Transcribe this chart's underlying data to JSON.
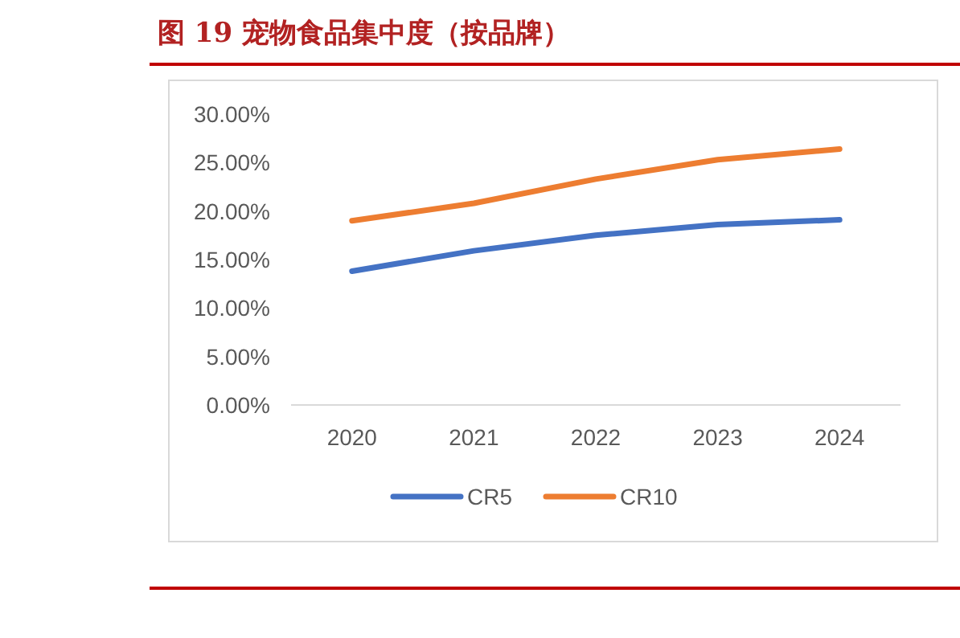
{
  "chart_data": {
    "type": "line",
    "title": "图 19   宠物食品集中度（按品牌）",
    "categories": [
      "2020",
      "2021",
      "2022",
      "2023",
      "2024"
    ],
    "series": [
      {
        "name": "CR5",
        "color": "#4472c4",
        "values": [
          13.8,
          15.9,
          17.5,
          18.6,
          19.1
        ]
      },
      {
        "name": "CR10",
        "color": "#ed7d31",
        "values": [
          19.0,
          20.8,
          23.3,
          25.3,
          26.4
        ]
      }
    ],
    "ylim": [
      0,
      30
    ],
    "yticks": [
      {
        "value": 0,
        "label": "0.00%"
      },
      {
        "value": 5,
        "label": "5.00%"
      },
      {
        "value": 10,
        "label": "10.00%"
      },
      {
        "value": 15,
        "label": "15.00%"
      },
      {
        "value": 20,
        "label": "20.00%"
      },
      {
        "value": 25,
        "label": "25.00%"
      },
      {
        "value": 30,
        "label": "30.00%"
      }
    ],
    "legend": "bottom",
    "marker": "none",
    "line_style": "solid"
  }
}
